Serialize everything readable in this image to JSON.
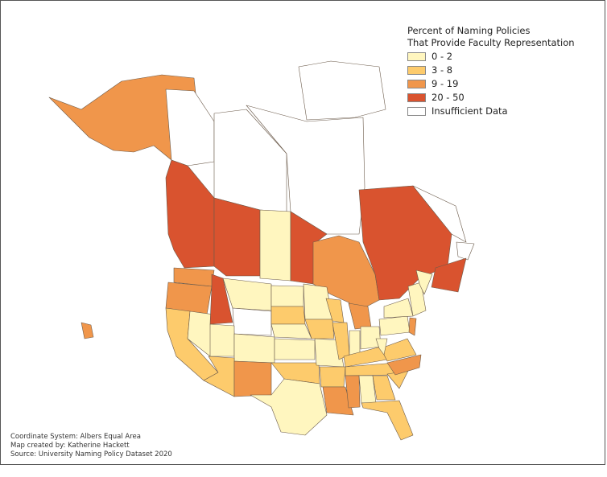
{
  "legend": {
    "title_line1": "Percent of Naming Policies",
    "title_line2": "That Provide Faculty Representation",
    "classes": [
      {
        "label": "0 - 2",
        "color": "#fff6bf"
      },
      {
        "label": "3 - 8",
        "color": "#fdcb6c"
      },
      {
        "label": "9 - 19",
        "color": "#f0964b"
      },
      {
        "label": "20 - 50",
        "color": "#d9532f"
      },
      {
        "label": "Insufficient Data",
        "color": "#ffffff"
      }
    ]
  },
  "footer": {
    "line1": "Coordinate System: Albers Equal Area",
    "line2": "Map created by: Katherine Hackett",
    "line3": "Source: University Naming Policy Dataset 2020"
  },
  "region_class": {
    "alaska": 2,
    "yukon": 4,
    "nwt": 4,
    "nunavut": 4,
    "arctic-islands": 4,
    "bc": 3,
    "alberta": 3,
    "saskatchewan": 0,
    "manitoba": 3,
    "ontario": 2,
    "quebec": 3,
    "labrador": 4,
    "newfoundland": 4,
    "maritimes": 3,
    "washington": 2,
    "oregon": 2,
    "california": 1,
    "nevada": 0,
    "idaho": 3,
    "montana": 0,
    "wyoming": 4,
    "utah": 0,
    "colorado": 0,
    "arizona": 1,
    "new-mexico": 2,
    "north-dakota": 0,
    "south-dakota": 1,
    "nebraska": 0,
    "kansas": 0,
    "oklahoma": 1,
    "texas": 0,
    "minnesota": 0,
    "iowa": 1,
    "missouri": 0,
    "arkansas": 1,
    "louisiana": 2,
    "wisconsin": 1,
    "illinois": 1,
    "michigan": 2,
    "indiana": 0,
    "ohio": 0,
    "kentucky": 1,
    "tennessee": 1,
    "mississippi": 2,
    "alabama": 0,
    "georgia": 1,
    "florida": 1,
    "south-carolina": 1,
    "north-carolina": 2,
    "virginia": 1,
    "west-virginia": 0,
    "pennsylvania": 0,
    "new-york": 0,
    "new-jersey": 2,
    "new-england": 0,
    "maine": 0,
    "hawaii": 2
  }
}
